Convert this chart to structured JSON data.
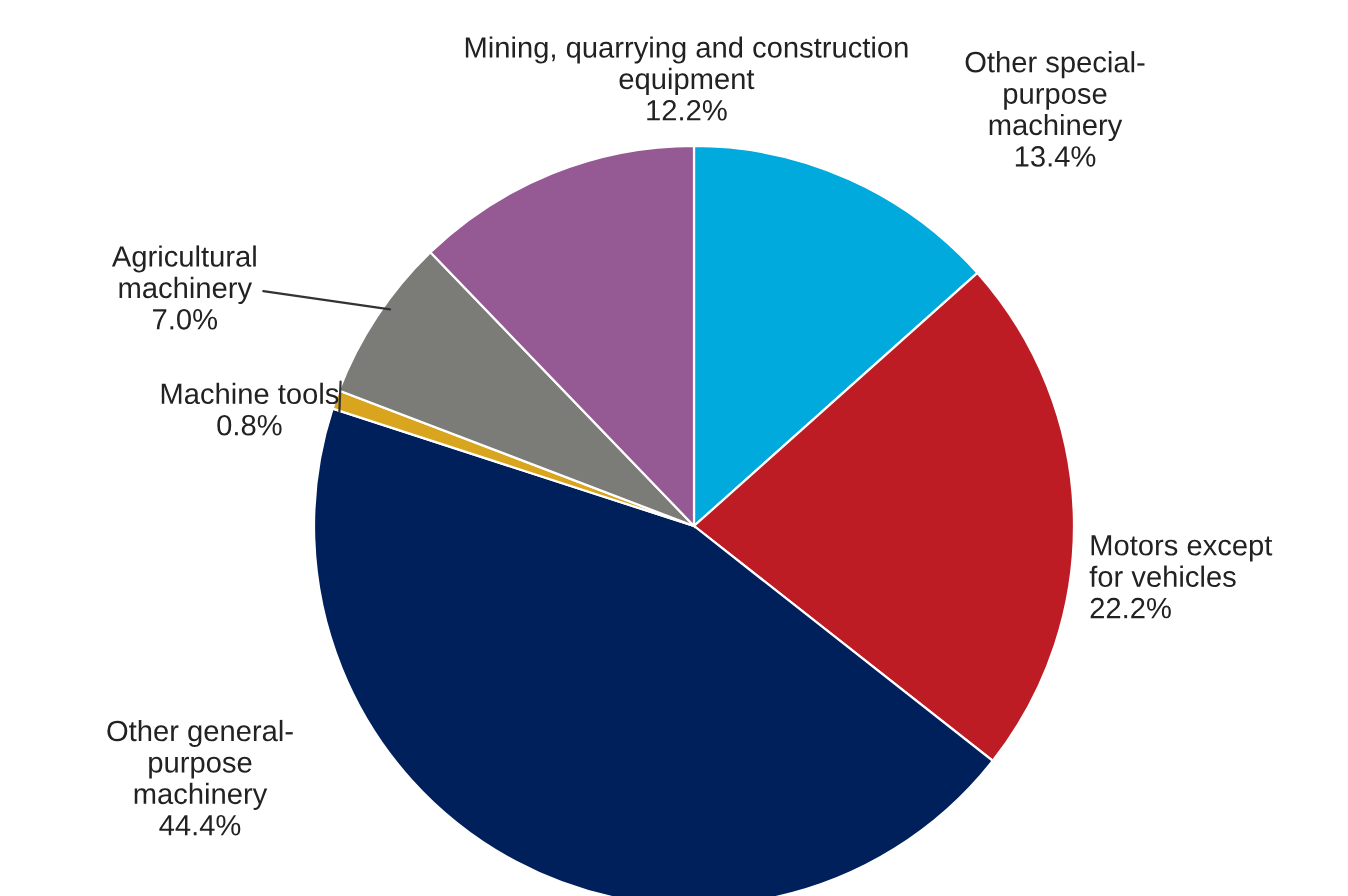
{
  "chart_data": {
    "type": "pie",
    "categories": [
      "Other special-\npurpose\nmachinery",
      "Motors except\nfor vehicles",
      "Other general-\npurpose\nmachinery",
      "Machine tools",
      "Agricultural\nmachinery",
      "Mining, quarrying and construction\nequipment"
    ],
    "values": [
      13.4,
      22.2,
      44.4,
      0.8,
      7.0,
      12.2
    ],
    "value_labels": [
      "13.4%",
      "22.2%",
      "44.4%",
      "0.8%",
      "7.0%",
      "12.2%"
    ],
    "colors": [
      "#00aadd",
      "#be1c24",
      "#00205b",
      "#d9a41e",
      "#7b7c78",
      "#955a94"
    ],
    "legend": false
  }
}
